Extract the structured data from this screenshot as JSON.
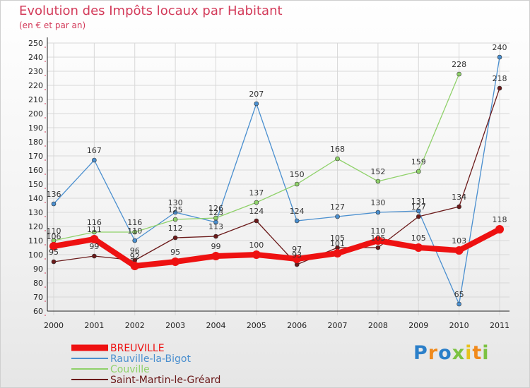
{
  "chart_data": {
    "type": "line",
    "title": "Evolution des Impôts locaux par Habitant",
    "subtitle": "(en € et par an)",
    "xlabel": "",
    "ylabel": "",
    "categories": [
      "2000",
      "2001",
      "2002",
      "2003",
      "2004",
      "2005",
      "2006",
      "2007",
      "2008",
      "2009",
      "2010",
      "2011"
    ],
    "ylim": [
      60,
      250
    ],
    "ytick_step": 10,
    "grid": true,
    "legend_position": "bottom-left",
    "series": [
      {
        "name": "Rauville-la-Bigot",
        "color": "#4a8fcf",
        "values": [
          136,
          167,
          110,
          130,
          123,
          207,
          124,
          127,
          130,
          131,
          65,
          240
        ],
        "labels": [
          "136",
          "167",
          "110",
          "130",
          "123",
          "207",
          "124",
          "127",
          "130",
          "131",
          "65",
          "240"
        ]
      },
      {
        "name": "Couville",
        "color": "#8fd16a",
        "values": [
          110,
          116,
          116,
          125,
          126,
          137,
          150,
          168,
          152,
          159,
          228,
          null
        ],
        "labels": [
          "110",
          "116",
          "116",
          "125",
          "126",
          "137",
          "150",
          "168",
          "152",
          "159",
          "228",
          ""
        ]
      },
      {
        "name": "Saint-Martin-le-Gréard",
        "color": "#6b1a1a",
        "values": [
          95,
          99,
          96,
          112,
          113,
          124,
          93,
          105,
          105,
          127,
          134,
          218
        ],
        "labels": [
          "95",
          "99",
          "96",
          "112",
          "113",
          "124",
          "93",
          "105",
          "105",
          "127",
          "134",
          "218"
        ]
      },
      {
        "name": "BREUVILLE",
        "color": "#ee1111",
        "values": [
          106,
          111,
          92,
          95,
          99,
          100,
          97,
          101,
          110,
          105,
          103,
          118
        ],
        "labels": [
          "106",
          "111",
          "92",
          "95",
          "99",
          "100",
          "97",
          "101",
          "110",
          "105",
          "103",
          "118"
        ]
      }
    ]
  },
  "logo": {
    "text": "Proxiti"
  }
}
